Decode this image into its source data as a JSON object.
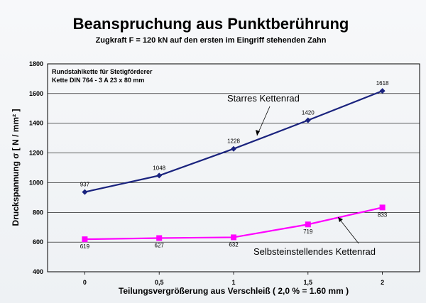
{
  "chart_data": {
    "type": "line",
    "title": "Beanspruchung aus Punktberührung",
    "subtitle": "Zugkraft F = 120 kN auf den ersten im Eingriff stehenden Zahn",
    "xlabel": "Teilungsvergrößerung aus Verschleiß ( 2,0 % = 1.60 mm )",
    "ylabel": "Druckspannung σ [ N / mm² ]",
    "xlim": [
      -0.25,
      2.25
    ],
    "ylim": [
      400,
      1800
    ],
    "x_ticks": [
      "0",
      "0,5",
      "1",
      "1,5",
      "2"
    ],
    "y_ticks": [
      "400",
      "600",
      "800",
      "1000",
      "1200",
      "1400",
      "1600",
      "1800"
    ],
    "grid": "horizontal",
    "note_lines": [
      "Rundstahlkette für Stetigförderer",
      "Kette DIN 764  - 3 A  23  x  80 mm"
    ],
    "series": [
      {
        "name": "Starres Kettenrad",
        "color": "#1a237e",
        "marker": "diamond",
        "x": [
          0,
          0.5,
          1,
          1.5,
          2
        ],
        "values": [
          937,
          1048,
          1228,
          1420,
          1618
        ],
        "labels": [
          "937",
          "1048",
          "1228",
          "1420",
          "1618"
        ]
      },
      {
        "name": "Selbsteinstellendes Kettenrad",
        "color": "#ff00ff",
        "marker": "square",
        "x": [
          0,
          0.5,
          1,
          1.5,
          2
        ],
        "values": [
          619,
          627,
          632,
          719,
          833
        ],
        "labels": [
          "619",
          "627",
          "632",
          "719",
          "833"
        ]
      }
    ]
  }
}
